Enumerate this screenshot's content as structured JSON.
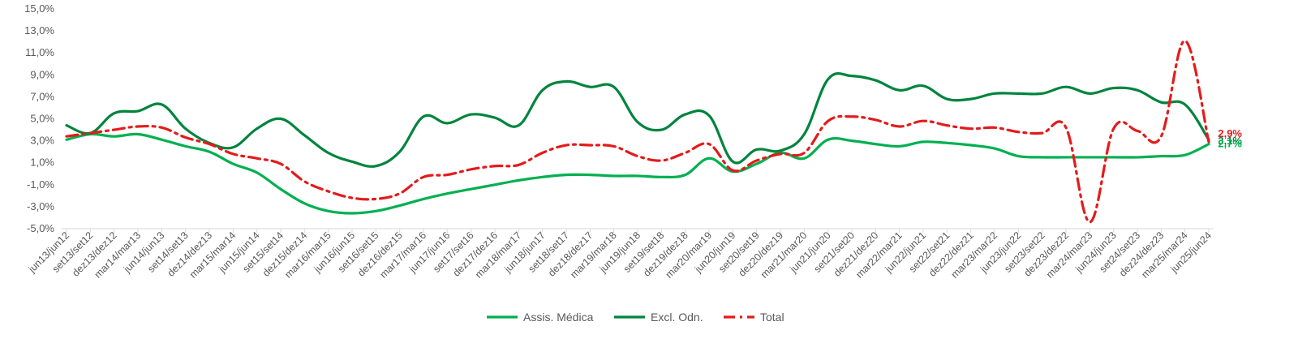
{
  "chart_data": {
    "type": "line",
    "title": "",
    "xlabel": "",
    "ylabel": "",
    "ylim": [
      -5.0,
      15.0
    ],
    "y_ticks": [
      "-5,0%",
      "-3,0%",
      "-1,0%",
      "1,0%",
      "3,0%",
      "5,0%",
      "7,0%",
      "9,0%",
      "11,0%",
      "13,0%",
      "15,0%"
    ],
    "grid": false,
    "legend_position": "bottom",
    "categories": [
      "jun13/jun12",
      "set13/set12",
      "dez13/dez12",
      "mar14/mar13",
      "jun14/jun13",
      "set14/set13",
      "dez14/dez13",
      "mar15/mar14",
      "jun15/jun14",
      "set15/set14",
      "dez15/dez14",
      "mar16/mar15",
      "jun16/jun15",
      "set16/set15",
      "dez16/dez15",
      "mar17/mar16",
      "jun17/jun16",
      "set17/set16",
      "dez17/dez16",
      "mar18/mar17",
      "jun18/jun17",
      "set18/set17",
      "dez18/dez17",
      "mar19/mar18",
      "jun19/jun18",
      "set19/set18",
      "dez19/dez18",
      "mar20/mar19",
      "jun20/jun19",
      "set20/set19",
      "dez20/dez19",
      "mar21/mar20",
      "jun21/jun20",
      "set21/set20",
      "dez21/dez20",
      "mar22/mar21",
      "jun22/jun21",
      "set22/set21",
      "dez22/dez21",
      "mar23/mar22",
      "jun23/jun22",
      "set23/set22",
      "dez23/dez22",
      "mar24/mar23",
      "jun24/jun23",
      "set24/set23",
      "dez24/dez23",
      "mar25/mar24",
      "jun25/jun24"
    ],
    "series": [
      {
        "name": "Assis. Médica",
        "color": "#00B050",
        "style": "solid",
        "end_label": "2,7%",
        "values": [
          3.1,
          3.6,
          3.4,
          3.6,
          3.1,
          2.5,
          2.0,
          0.9,
          0.1,
          -1.4,
          -2.7,
          -3.4,
          -3.6,
          -3.4,
          -2.9,
          -2.3,
          -1.8,
          -1.4,
          -1.0,
          -0.6,
          -0.3,
          -0.1,
          -0.1,
          -0.2,
          -0.2,
          -0.3,
          -0.1,
          1.4,
          0.2,
          0.9,
          1.9,
          1.4,
          3.1,
          3.0,
          2.7,
          2.5,
          2.9,
          2.8,
          2.6,
          2.3,
          1.6,
          1.5,
          1.5,
          1.5,
          1.5,
          1.5,
          1.6,
          1.7,
          2.7
        ]
      },
      {
        "name": "Excl. Odn.",
        "color": "#00843D",
        "style": "solid",
        "end_label": "3,1%",
        "values": [
          4.4,
          3.7,
          5.5,
          5.7,
          6.3,
          4.1,
          2.8,
          2.4,
          4.1,
          5.0,
          3.5,
          1.9,
          1.1,
          0.7,
          2.0,
          5.2,
          4.6,
          5.4,
          5.1,
          4.4,
          7.6,
          8.4,
          7.9,
          7.9,
          4.7,
          4.0,
          5.4,
          5.3,
          1.1,
          2.2,
          2.1,
          3.6,
          8.6,
          8.9,
          8.5,
          7.6,
          8.0,
          6.8,
          6.8,
          7.3,
          7.3,
          7.3,
          7.9,
          7.3,
          7.8,
          7.6,
          6.5,
          6.3,
          3.1
        ]
      },
      {
        "name": "Total",
        "color": "#E31B1B",
        "style": "dashdot",
        "end_label": "2,9%",
        "values": [
          3.4,
          3.7,
          4.0,
          4.3,
          4.2,
          3.3,
          2.7,
          1.8,
          1.4,
          0.9,
          -0.7,
          -1.6,
          -2.2,
          -2.3,
          -1.8,
          -0.3,
          -0.1,
          0.4,
          0.7,
          0.8,
          1.9,
          2.6,
          2.6,
          2.5,
          1.6,
          1.2,
          1.9,
          2.7,
          0.3,
          1.2,
          1.8,
          1.9,
          4.8,
          5.2,
          4.9,
          4.3,
          4.8,
          4.4,
          4.1,
          4.2,
          3.8,
          3.7,
          4.2,
          -4.4,
          4.1,
          3.9,
          3.4,
          12.1,
          2.9
        ]
      }
    ]
  }
}
